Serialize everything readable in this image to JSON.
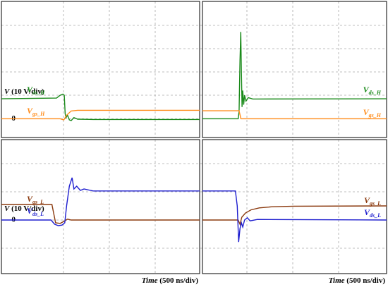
{
  "chart_data": [
    {
      "type": "line",
      "ylabel_symbol": "V",
      "ylabel_unit": "(10 V/div)",
      "xlim": [
        0,
        2160
      ],
      "ylim": [
        -8,
        50
      ],
      "yticks": [
        0
      ],
      "series": [
        {
          "name": "V",
          "sub": "ds_H",
          "color": "#1a8a1a",
          "x": [
            0,
            600,
            640,
            670,
            685,
            695,
            705,
            720,
            740,
            760,
            790,
            830,
            1000,
            1500,
            2160
          ],
          "values": [
            8.5,
            8.8,
            10,
            10.5,
            10,
            2,
            0.5,
            1.5,
            -0.5,
            -0.8,
            0.5,
            -0.2,
            -0.3,
            -0.3,
            -0.3
          ]
        },
        {
          "name": "V",
          "sub": "gs_H",
          "color": "#ff8c1a",
          "x": [
            0,
            640,
            680,
            710,
            760,
            830,
            2160
          ],
          "values": [
            0,
            0,
            -0.5,
            1.5,
            3.3,
            3.6,
            3.6
          ]
        }
      ]
    },
    {
      "type": "line",
      "xlim": [
        0,
        2010
      ],
      "ylim": [
        -8,
        50
      ],
      "series": [
        {
          "name": "V",
          "sub": "ds_H",
          "color": "#1a8a1a",
          "x": [
            0,
            390,
            400,
            410,
            418,
            425,
            432,
            440,
            450,
            460,
            475,
            500,
            550,
            2010
          ],
          "values": [
            0,
            0,
            3,
            25,
            37,
            20,
            5,
            12,
            6,
            10,
            7.5,
            9,
            8.4,
            8.5
          ]
        },
        {
          "name": "V",
          "sub": "gs_H",
          "color": "#ff8c1a",
          "x": [
            0,
            400,
            420,
            2010
          ],
          "values": [
            3.4,
            3.4,
            0,
            0
          ]
        }
      ]
    },
    {
      "type": "line",
      "ylabel_symbol": "V",
      "ylabel_unit": "(10 V/div)",
      "xlabel_symbol": "Time",
      "xlabel_unit": "(500 ns/div)",
      "xlim": [
        0,
        2160
      ],
      "ylim": [
        -19,
        28.5
      ],
      "yticks": [
        0
      ],
      "series": [
        {
          "name": "V",
          "sub": "gs_L",
          "color": "#8b3a0f",
          "x": [
            0,
            550,
            590,
            640,
            680,
            720,
            760,
            2160
          ],
          "values": [
            5.5,
            5.5,
            -1,
            -1.2,
            -0.5,
            0.3,
            0,
            0
          ]
        },
        {
          "name": "V",
          "sub": "ds_L",
          "color": "#1f1fcf",
          "x": [
            0,
            540,
            580,
            620,
            660,
            690,
            710,
            740,
            770,
            790,
            820,
            860,
            900,
            1000,
            2160
          ],
          "values": [
            0,
            0,
            -1.5,
            -2,
            -1.8,
            -1,
            5,
            12,
            15,
            11,
            12,
            10.5,
            11,
            10.3,
            10.3
          ]
        }
      ]
    },
    {
      "type": "line",
      "xlabel_symbol": "Time",
      "xlabel_unit": "(500 ns/div)",
      "xlim": [
        0,
        2010
      ],
      "ylim": [
        -19,
        28.5
      ],
      "series": [
        {
          "name": "V",
          "sub": "gs_L",
          "color": "#8b3a0f",
          "x": [
            0,
            390,
            410,
            430,
            470,
            530,
            620,
            760,
            1000,
            2010
          ],
          "values": [
            0,
            0,
            -1.5,
            1,
            2.5,
            3.6,
            4.3,
            4.7,
            4.9,
            5
          ]
        },
        {
          "name": "V",
          "sub": "ds_L",
          "color": "#1f1fcf",
          "x": [
            0,
            360,
            380,
            395,
            410,
            425,
            440,
            460,
            490,
            520,
            600,
            2010
          ],
          "values": [
            10.3,
            10.3,
            5,
            -7.8,
            -3,
            -1,
            -2.5,
            0,
            0.8,
            -0.3,
            0.2,
            0
          ]
        }
      ]
    }
  ]
}
